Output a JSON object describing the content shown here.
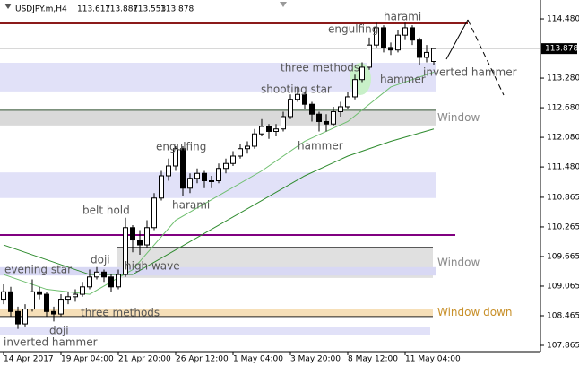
{
  "chart_data": {
    "type": "candlestick",
    "header": {
      "symbol": "USDJPY.m,H4",
      "open": 113.617,
      "high": 113.887,
      "low": 113.553,
      "close": 113.878
    },
    "current_price": {
      "value": 113.878,
      "label": "113.878"
    },
    "ylim": [
      107.738,
      114.862
    ],
    "yticks": [
      {
        "value": 114.48,
        "label": "114.480"
      },
      {
        "value": 113.28,
        "label": "113.280"
      },
      {
        "value": 112.68,
        "label": "112.680"
      },
      {
        "value": 112.08,
        "label": "112.080"
      },
      {
        "value": 111.48,
        "label": "111.480"
      },
      {
        "value": 110.865,
        "label": "110.865"
      },
      {
        "value": 110.265,
        "label": "110.265"
      },
      {
        "value": 109.665,
        "label": "109.665"
      },
      {
        "value": 109.065,
        "label": "109.065"
      },
      {
        "value": 108.465,
        "label": "108.465"
      },
      {
        "value": 107.865,
        "label": "107.865"
      }
    ],
    "xticks": [
      {
        "value": 0,
        "label": "14 Apr 2017"
      },
      {
        "value": 8,
        "label": "19 Apr 04:00"
      },
      {
        "value": 16,
        "label": "21 Apr 20:00"
      },
      {
        "value": 24,
        "label": "26 Apr 12:00"
      },
      {
        "value": 32,
        "label": "1 May 04:00"
      },
      {
        "value": 40,
        "label": "3 May 20:00"
      },
      {
        "value": 48,
        "label": "8 May 12:00"
      },
      {
        "value": 56,
        "label": "11 May 04:00"
      }
    ],
    "bull_color": "#ffffff",
    "bear_color": "#000000",
    "open": [
      108.8,
      108.95,
      108.55,
      108.3,
      108.6,
      108.95,
      108.9,
      108.55,
      108.5,
      108.8,
      108.85,
      108.9,
      109.05,
      109.25,
      109.35,
      109.25,
      109.05,
      109.3,
      110.25,
      110.0,
      109.9,
      110.25,
      110.85,
      111.3,
      111.5,
      111.85,
      111.05,
      111.25,
      111.35,
      111.2,
      111.2,
      111.45,
      111.55,
      111.7,
      111.85,
      111.9,
      112.15,
      112.3,
      112.2,
      112.25,
      112.5,
      112.85,
      112.95,
      112.75,
      112.55,
      112.4,
      112.35,
      112.6,
      112.7,
      112.9,
      113.25,
      113.5,
      113.95,
      114.3,
      113.9,
      113.85,
      114.15,
      114.3,
      114.05,
      113.7,
      113.617
    ],
    "high": [
      109.1,
      109.05,
      108.65,
      108.7,
      109.2,
      109.05,
      108.95,
      108.65,
      108.9,
      108.95,
      109.0,
      109.15,
      109.4,
      109.45,
      109.4,
      109.3,
      109.4,
      110.45,
      110.3,
      110.2,
      110.4,
      110.95,
      111.4,
      111.65,
      111.9,
      111.9,
      111.35,
      111.45,
      111.4,
      111.3,
      111.55,
      111.65,
      111.8,
      111.95,
      112.0,
      112.25,
      112.45,
      112.35,
      112.35,
      112.6,
      112.95,
      113.1,
      113.0,
      112.8,
      112.6,
      112.55,
      112.7,
      112.8,
      113.0,
      113.35,
      113.6,
      114.1,
      114.4,
      114.35,
      114.0,
      114.25,
      114.4,
      114.35,
      114.1,
      113.95,
      113.887
    ],
    "low": [
      108.7,
      108.45,
      108.2,
      108.25,
      108.55,
      108.8,
      108.45,
      108.35,
      108.45,
      108.7,
      108.75,
      108.85,
      109.0,
      109.2,
      109.15,
      108.95,
      109.0,
      109.25,
      109.75,
      109.7,
      109.85,
      110.2,
      110.8,
      111.2,
      111.4,
      110.9,
      110.95,
      111.15,
      111.05,
      111.05,
      111.15,
      111.35,
      111.5,
      111.65,
      111.75,
      111.85,
      112.1,
      112.05,
      112.1,
      112.2,
      112.45,
      112.8,
      112.65,
      112.4,
      112.2,
      112.2,
      112.3,
      112.5,
      112.65,
      112.85,
      113.2,
      113.45,
      113.9,
      113.8,
      113.75,
      113.8,
      114.05,
      113.95,
      113.55,
      113.6,
      113.553
    ],
    "close": [
      108.95,
      108.55,
      108.3,
      108.6,
      108.95,
      108.9,
      108.55,
      108.5,
      108.8,
      108.85,
      108.9,
      109.05,
      109.25,
      109.35,
      109.25,
      109.05,
      109.3,
      110.25,
      110.0,
      109.9,
      110.25,
      110.85,
      111.3,
      111.5,
      111.85,
      111.05,
      111.25,
      111.35,
      111.2,
      111.2,
      111.45,
      111.55,
      111.7,
      111.85,
      111.9,
      112.15,
      112.3,
      112.2,
      112.25,
      112.5,
      112.85,
      112.95,
      112.75,
      112.55,
      112.4,
      112.35,
      112.6,
      112.7,
      112.9,
      113.25,
      113.5,
      113.95,
      114.3,
      113.9,
      113.85,
      114.15,
      114.3,
      114.05,
      113.7,
      113.8,
      113.878
    ],
    "moving_averages": [
      {
        "color": "#6fbf6f",
        "x": [
          0,
          6,
          12,
          18,
          24,
          30,
          36,
          42,
          48,
          54,
          60
        ],
        "values": [
          109.3,
          109.0,
          108.9,
          109.4,
          110.4,
          110.9,
          111.4,
          112.0,
          112.4,
          113.1,
          113.4
        ]
      },
      {
        "color": "#2e8b2e",
        "x": [
          0,
          6,
          12,
          18,
          24,
          30,
          36,
          42,
          48,
          54,
          60
        ],
        "values": [
          109.9,
          109.6,
          109.3,
          109.3,
          109.8,
          110.3,
          110.8,
          111.3,
          111.7,
          112.0,
          112.25
        ]
      }
    ],
    "zones": [
      {
        "high": 113.59,
        "low": 113.01,
        "color": "#e1e1f8"
      },
      {
        "high": 112.63,
        "low": 112.32,
        "color": "#d9d9d9",
        "label": "Window"
      },
      {
        "high": 111.37,
        "low": 110.85,
        "color": "#e1e1f8"
      },
      {
        "high": 109.85,
        "low": 109.23,
        "color": "#e0e0e0",
        "label": "Window"
      },
      {
        "high": 109.45,
        "low": 109.28,
        "color": "#d8d8f4"
      },
      {
        "high": 108.61,
        "low": 108.45,
        "color": "#f6dfb8",
        "label": "Window down"
      },
      {
        "high": 108.23,
        "low": 108.08,
        "color": "#e1e1f8"
      }
    ],
    "levels": [
      {
        "value": 114.39,
        "color": "#8b1a1a"
      },
      {
        "value": 110.1,
        "color": "#800080"
      },
      {
        "value": 112.63,
        "color": "#2f4f2f"
      },
      {
        "value": 109.85,
        "color": "#222222"
      },
      {
        "value": 108.45,
        "color": "#222222"
      }
    ],
    "annotations": [
      "harami",
      "engulfing",
      "three methods",
      "hammer",
      "inverted hammer",
      "shooting star",
      "hammer",
      "engulfing",
      "harami",
      "belt hold",
      "doji",
      "high wave",
      "evening star",
      "three methods",
      "doji",
      "inverted hammer"
    ]
  }
}
